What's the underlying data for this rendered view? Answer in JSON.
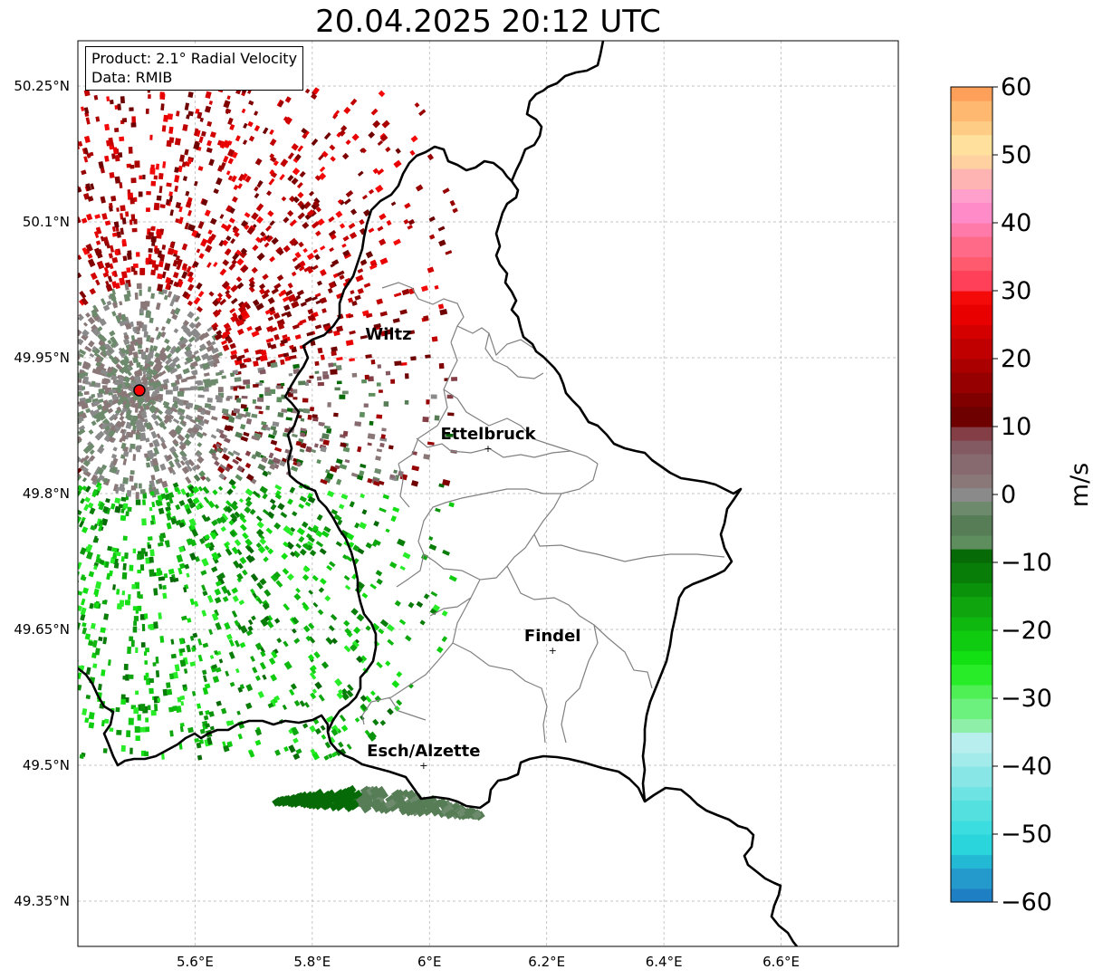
{
  "title": "20.04.2025 20:12 UTC",
  "info": {
    "product": "Product: 2.1° Radial Velocity",
    "data": "Data: RMIB"
  },
  "map": {
    "lon_ticks": [
      {
        "value": 5.6,
        "label": "5.6°E"
      },
      {
        "value": 5.8,
        "label": "5.8°E"
      },
      {
        "value": 6.0,
        "label": "6°E"
      },
      {
        "value": 6.2,
        "label": "6.2°E"
      },
      {
        "value": 6.4,
        "label": "6.4°E"
      },
      {
        "value": 6.6,
        "label": "6.6°E"
      }
    ],
    "lat_ticks": [
      {
        "value": 50.25,
        "label": "50.25°N"
      },
      {
        "value": 50.1,
        "label": "50.1°N"
      },
      {
        "value": 49.95,
        "label": "49.95°N"
      },
      {
        "value": 49.8,
        "label": "49.8°N"
      },
      {
        "value": 49.65,
        "label": "49.65°N"
      },
      {
        "value": 49.5,
        "label": "49.5°N"
      },
      {
        "value": 49.35,
        "label": "49.35°N"
      }
    ],
    "extent": {
      "lon_min": 5.4,
      "lon_max": 6.8,
      "lat_min": 49.3,
      "lat_max": 50.3
    },
    "radar_site": {
      "lon": 5.505,
      "lat": 49.914
    },
    "cities": [
      {
        "name": "Wiltz",
        "lon": 5.93,
        "lat": 49.966
      },
      {
        "name": "Ettelbruck",
        "lon": 6.1,
        "lat": 49.85
      },
      {
        "name": "Findel",
        "lon": 6.21,
        "lat": 49.627
      },
      {
        "name": "Esch/Alzette",
        "lon": 5.99,
        "lat": 49.5
      }
    ]
  },
  "colorbar": {
    "unit": "m/s",
    "min": -60,
    "max": 60,
    "ticks": [
      {
        "value": 60,
        "label": "60"
      },
      {
        "value": 50,
        "label": "50"
      },
      {
        "value": 40,
        "label": "40"
      },
      {
        "value": 30,
        "label": "30"
      },
      {
        "value": 20,
        "label": "20"
      },
      {
        "value": 10,
        "label": "10"
      },
      {
        "value": 0,
        "label": "0"
      },
      {
        "value": -10,
        "label": "−10"
      },
      {
        "value": -20,
        "label": "−20"
      },
      {
        "value": -30,
        "label": "−30"
      },
      {
        "value": -40,
        "label": "−40"
      },
      {
        "value": -50,
        "label": "−50"
      },
      {
        "value": -60,
        "label": "−60"
      }
    ],
    "bands": [
      {
        "from": -60,
        "to": -58,
        "color": "#1f7fc4"
      },
      {
        "from": -58,
        "to": -55,
        "color": "#2499cc"
      },
      {
        "from": -55,
        "to": -53,
        "color": "#23b8d4"
      },
      {
        "from": -53,
        "to": -50,
        "color": "#2ad6dc"
      },
      {
        "from": -50,
        "to": -48,
        "color": "#3cdde0"
      },
      {
        "from": -48,
        "to": -45,
        "color": "#55e0e0"
      },
      {
        "from": -45,
        "to": -43,
        "color": "#6de3e3"
      },
      {
        "from": -43,
        "to": -40,
        "color": "#88e6e6"
      },
      {
        "from": -40,
        "to": -38,
        "color": "#a3eaea"
      },
      {
        "from": -38,
        "to": -35,
        "color": "#b8eeee"
      },
      {
        "from": -35,
        "to": -33,
        "color": "#8ef0a8"
      },
      {
        "from": -33,
        "to": -30,
        "color": "#6cf07e"
      },
      {
        "from": -30,
        "to": -28,
        "color": "#4ef055"
      },
      {
        "from": -28,
        "to": -25,
        "color": "#28ec28"
      },
      {
        "from": -25,
        "to": -23,
        "color": "#12e012"
      },
      {
        "from": -23,
        "to": -20,
        "color": "#10cc10"
      },
      {
        "from": -20,
        "to": -18,
        "color": "#0fb80f"
      },
      {
        "from": -18,
        "to": -15,
        "color": "#0ea50e"
      },
      {
        "from": -15,
        "to": -13,
        "color": "#0b920b"
      },
      {
        "from": -13,
        "to": -10,
        "color": "#087d08"
      },
      {
        "from": -10,
        "to": -8,
        "color": "#066a06"
      },
      {
        "from": -8,
        "to": -6,
        "color": "#5e8e5e"
      },
      {
        "from": -6,
        "to": -3,
        "color": "#567d56"
      },
      {
        "from": -3,
        "to": -1,
        "color": "#6d8a6d"
      },
      {
        "from": -1,
        "to": 1,
        "color": "#8a8a8a"
      },
      {
        "from": 1,
        "to": 3,
        "color": "#8a7878"
      },
      {
        "from": 3,
        "to": 6,
        "color": "#876a70"
      },
      {
        "from": 6,
        "to": 8,
        "color": "#845a62"
      },
      {
        "from": 8,
        "to": 10,
        "color": "#843e46"
      },
      {
        "from": 10,
        "to": 13,
        "color": "#6e0000"
      },
      {
        "from": 13,
        "to": 15,
        "color": "#800000"
      },
      {
        "from": 15,
        "to": 18,
        "color": "#960000"
      },
      {
        "from": 18,
        "to": 20,
        "color": "#aa0000"
      },
      {
        "from": 20,
        "to": 23,
        "color": "#c00000"
      },
      {
        "from": 23,
        "to": 25,
        "color": "#d40000"
      },
      {
        "from": 25,
        "to": 28,
        "color": "#e80000"
      },
      {
        "from": 28,
        "to": 30,
        "color": "#f50a0a"
      },
      {
        "from": 30,
        "to": 33,
        "color": "#ff4058"
      },
      {
        "from": 33,
        "to": 35,
        "color": "#ff5a6e"
      },
      {
        "from": 35,
        "to": 38,
        "color": "#ff6a88"
      },
      {
        "from": 38,
        "to": 40,
        "color": "#ff7aa8"
      },
      {
        "from": 40,
        "to": 43,
        "color": "#ff8cc8"
      },
      {
        "from": 43,
        "to": 45,
        "color": "#ffa0cc"
      },
      {
        "from": 45,
        "to": 48,
        "color": "#ffb4b4"
      },
      {
        "from": 48,
        "to": 50,
        "color": "#ffd0a0"
      },
      {
        "from": 50,
        "to": 53,
        "color": "#ffe09c"
      },
      {
        "from": 53,
        "to": 55,
        "color": "#ffcc86"
      },
      {
        "from": 55,
        "to": 58,
        "color": "#ffb870"
      },
      {
        "from": 58,
        "to": 60,
        "color": "#ffa05a"
      }
    ]
  },
  "colors": {
    "border": "#000000",
    "district": "#808080",
    "grid": "#b0b0b0",
    "radar_marker": "#ff0000"
  }
}
